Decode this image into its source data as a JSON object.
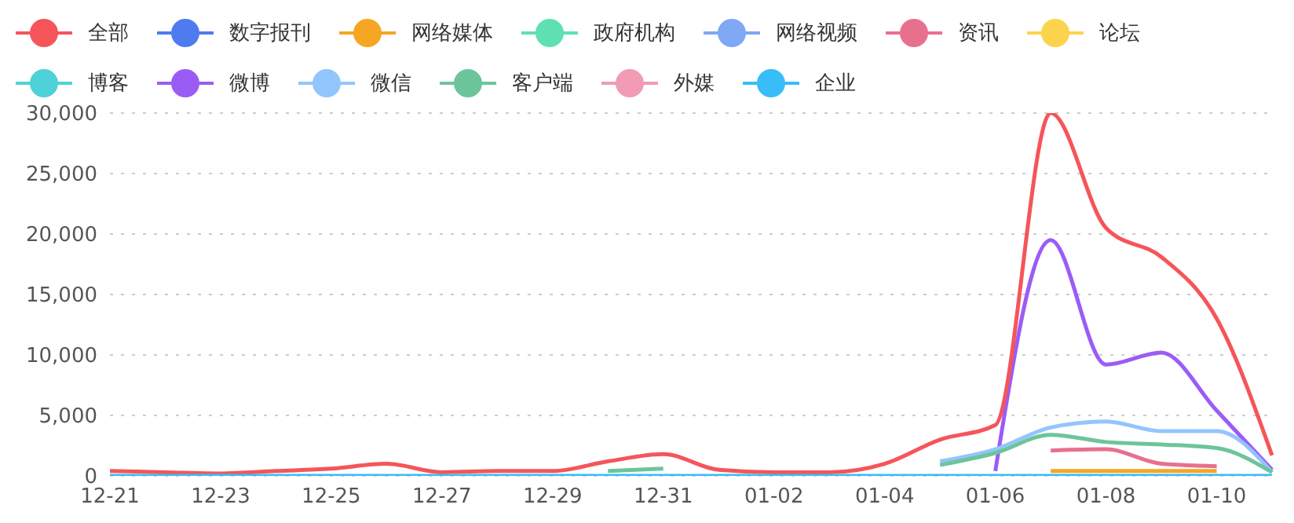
{
  "chart_data": {
    "type": "line",
    "categories": [
      "12-21",
      null,
      "12-23",
      null,
      "12-25",
      null,
      "12-27",
      null,
      "12-29",
      null,
      "12-31",
      null,
      "01-02",
      null,
      "01-04",
      null,
      "01-06",
      null,
      "01-08",
      null,
      "01-10",
      null
    ],
    "series": [
      {
        "name": "全部",
        "color": "#f5555a",
        "values": [
          400,
          300,
          200,
          400,
          600,
          1000,
          300,
          400,
          400,
          1200,
          1800,
          500,
          300,
          300,
          1000,
          3000,
          4200,
          30000,
          20500,
          18100,
          13000,
          1700
        ]
      },
      {
        "name": "数字报刊",
        "color": "#4e7cf0",
        "values": [
          null,
          null,
          null,
          null,
          null,
          null,
          null,
          null,
          null,
          null,
          null,
          null,
          null,
          null,
          null,
          null,
          null,
          null,
          null,
          null,
          null,
          null
        ]
      },
      {
        "name": "网络媒体",
        "color": "#f5a623",
        "values": [
          null,
          null,
          null,
          null,
          null,
          null,
          null,
          null,
          null,
          null,
          null,
          null,
          null,
          null,
          null,
          null,
          null,
          400,
          400,
          400,
          400,
          null
        ]
      },
      {
        "name": "政府机构",
        "color": "#5fe0b0",
        "values": [
          null,
          null,
          null,
          null,
          null,
          null,
          null,
          null,
          null,
          null,
          null,
          null,
          null,
          null,
          null,
          null,
          null,
          null,
          null,
          null,
          null,
          null
        ]
      },
      {
        "name": "网络视频",
        "color": "#7fa8f5",
        "values": [
          null,
          null,
          null,
          null,
          null,
          null,
          null,
          null,
          null,
          null,
          null,
          null,
          null,
          null,
          null,
          null,
          null,
          null,
          null,
          null,
          null,
          null
        ]
      },
      {
        "name": "资讯",
        "color": "#e8708f",
        "values": [
          null,
          null,
          null,
          null,
          null,
          null,
          null,
          null,
          null,
          null,
          null,
          null,
          null,
          null,
          null,
          null,
          null,
          2100,
          2200,
          1000,
          800,
          null
        ]
      },
      {
        "name": "论坛",
        "color": "#fcd34d",
        "values": [
          null,
          null,
          null,
          null,
          null,
          null,
          null,
          null,
          null,
          null,
          null,
          null,
          null,
          null,
          null,
          null,
          null,
          null,
          null,
          null,
          null,
          null
        ]
      },
      {
        "name": "博客",
        "color": "#4fd1d9",
        "values": [
          null,
          null,
          null,
          null,
          null,
          null,
          null,
          null,
          null,
          null,
          null,
          null,
          null,
          null,
          null,
          null,
          null,
          null,
          null,
          null,
          null,
          null
        ]
      },
      {
        "name": "微博",
        "color": "#9b5cf6",
        "values": [
          null,
          null,
          null,
          null,
          null,
          null,
          null,
          null,
          null,
          null,
          null,
          null,
          null,
          null,
          null,
          null,
          400,
          19500,
          9200,
          10200,
          5400,
          500
        ]
      },
      {
        "name": "微信",
        "color": "#93c5fd",
        "values": [
          null,
          null,
          null,
          null,
          null,
          null,
          null,
          null,
          null,
          null,
          null,
          null,
          null,
          null,
          null,
          1200,
          2200,
          4000,
          4500,
          3700,
          3700,
          300
        ]
      },
      {
        "name": "客户端",
        "color": "#6cc59a",
        "values": [
          null,
          null,
          null,
          null,
          null,
          null,
          null,
          null,
          null,
          400,
          600,
          null,
          null,
          null,
          null,
          900,
          1900,
          3400,
          2800,
          2600,
          2300,
          300
        ]
      },
      {
        "name": "外媒",
        "color": "#f19bb5",
        "values": [
          null,
          null,
          null,
          null,
          null,
          null,
          null,
          null,
          null,
          null,
          null,
          null,
          null,
          null,
          null,
          null,
          null,
          null,
          null,
          null,
          null,
          null
        ]
      },
      {
        "name": "企业",
        "color": "#38bdf8",
        "values": [
          0,
          0,
          0,
          0,
          0,
          0,
          0,
          0,
          0,
          0,
          0,
          0,
          0,
          0,
          0,
          0,
          0,
          0,
          0,
          0,
          0,
          0
        ]
      }
    ],
    "ylim": [
      0,
      30000
    ],
    "yticks": [
      {
        "value": 0,
        "label": "0"
      },
      {
        "value": 5000,
        "label": "5,000"
      },
      {
        "value": 10000,
        "label": "10,000"
      },
      {
        "value": 15000,
        "label": "15,000"
      },
      {
        "value": 20000,
        "label": "20,000"
      },
      {
        "value": 25000,
        "label": "25,000"
      },
      {
        "value": 30000,
        "label": "30,000"
      }
    ],
    "grid": "y",
    "legend": "top",
    "marker": "none",
    "line_style": "solid"
  }
}
